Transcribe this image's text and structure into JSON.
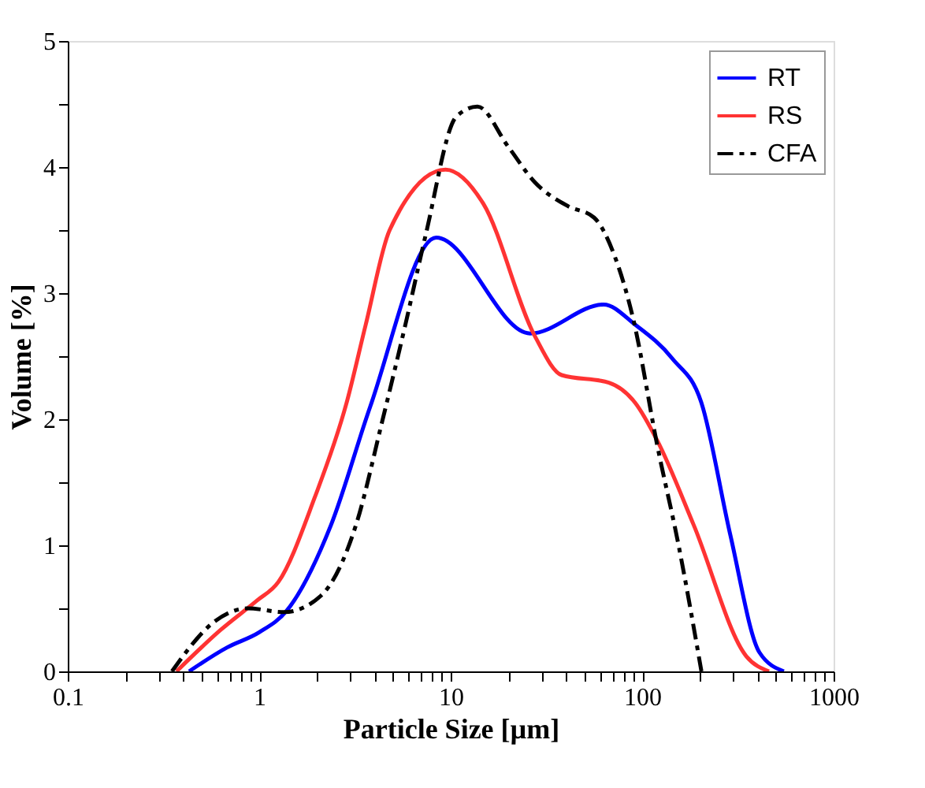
{
  "chart_data": {
    "type": "line",
    "xlabel": "Particle Size [µm]",
    "ylabel": "Volume [%]",
    "log": "x",
    "xlim": [
      0.1,
      1000
    ],
    "ylim": [
      0,
      5
    ],
    "xticks": [
      0.1,
      {
        "value": 0.2,
        "label": null
      },
      {
        "value": 0.3,
        "label": null
      },
      {
        "value": 0.4,
        "label": null
      },
      {
        "value": 0.5,
        "label": null
      },
      {
        "value": 0.6,
        "label": null
      },
      {
        "value": 0.7,
        "label": null
      },
      {
        "value": 0.8,
        "label": null
      },
      {
        "value": 0.9,
        "label": null
      },
      1,
      {
        "value": 2,
        "label": null
      },
      {
        "value": 3,
        "label": null
      },
      {
        "value": 4,
        "label": null
      },
      {
        "value": 5,
        "label": null
      },
      {
        "value": 6,
        "label": null
      },
      {
        "value": 7,
        "label": null
      },
      {
        "value": 8,
        "label": null
      },
      {
        "value": 9,
        "label": null
      },
      10,
      {
        "value": 20,
        "label": null
      },
      {
        "value": 30,
        "label": null
      },
      {
        "value": 40,
        "label": null
      },
      {
        "value": 50,
        "label": null
      },
      {
        "value": 60,
        "label": null
      },
      {
        "value": 70,
        "label": null
      },
      {
        "value": 80,
        "label": null
      },
      {
        "value": 90,
        "label": null
      },
      100,
      {
        "value": 200,
        "label": null
      },
      {
        "value": 300,
        "label": null
      },
      {
        "value": 400,
        "label": null
      },
      {
        "value": 500,
        "label": null
      },
      {
        "value": 600,
        "label": null
      },
      {
        "value": 700,
        "label": null
      },
      {
        "value": 800,
        "label": null
      },
      {
        "value": 900,
        "label": null
      },
      1000
    ],
    "yticks": [
      0,
      {
        "value": 0.5,
        "label": null
      },
      1,
      {
        "value": 1.5,
        "label": null
      },
      2,
      {
        "value": 2.5,
        "label": null
      },
      3,
      {
        "value": 3.5,
        "label": null
      },
      4,
      {
        "value": 4.5,
        "label": null
      },
      5
    ],
    "grid": false,
    "legend": "top right",
    "marker": "none",
    "series": [
      {
        "name": "RT",
        "color": "#0000ff",
        "line_style": "solid",
        "x": [
          0.43,
          0.68,
          1.0,
          1.39,
          2.37,
          3.8,
          8.4,
          26,
          63,
          92,
          144,
          204,
          288,
          410,
          550
        ],
        "values": [
          0,
          0.19,
          0.31,
          0.48,
          1.16,
          2.1,
          3.44,
          2.68,
          2.91,
          2.75,
          2.48,
          2.13,
          1.09,
          0.15,
          0
        ]
      },
      {
        "name": "RS",
        "color": "#ff3333",
        "line_style": "solid",
        "x": [
          0.37,
          0.63,
          0.97,
          1.26,
          1.95,
          2.86,
          3.6,
          4.8,
          9.4,
          14.8,
          27.5,
          38,
          67,
          92,
          120,
          186,
          350,
          460
        ],
        "values": [
          0,
          0.33,
          0.56,
          0.71,
          1.38,
          2.13,
          2.75,
          3.5,
          3.98,
          3.71,
          2.66,
          2.35,
          2.29,
          2.13,
          1.83,
          1.16,
          0.12,
          0
        ]
      },
      {
        "name": "CFA",
        "color": "#000000",
        "line_style": "dashed",
        "x": [
          0.35,
          0.59,
          0.87,
          1.35,
          2.1,
          3.2,
          4.4,
          5.8,
          7.4,
          10.7,
          13.8,
          20,
          27.5,
          41,
          56,
          72,
          90,
          120,
          155,
          204
        ],
        "values": [
          0,
          0.4,
          0.5,
          0.47,
          0.6,
          1.16,
          1.99,
          2.75,
          3.46,
          4.4,
          4.48,
          4.16,
          3.88,
          3.69,
          3.6,
          3.29,
          2.79,
          1.79,
          1.0,
          0
        ]
      }
    ]
  }
}
